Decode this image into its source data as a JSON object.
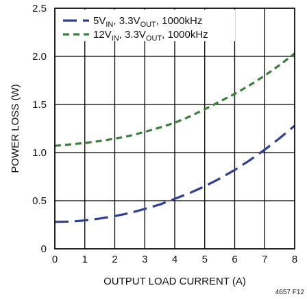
{
  "chart_data": {
    "type": "line",
    "xlabel": "OUTPUT LOAD CURRENT (A)",
    "ylabel": "POWER LOSS (W)",
    "xlim": [
      0,
      8
    ],
    "ylim": [
      0,
      2.5
    ],
    "x_ticks": [
      "0",
      "1",
      "2",
      "3",
      "4",
      "5",
      "6",
      "7",
      "8"
    ],
    "y_ticks": [
      "0",
      "0.5",
      "1.0",
      "1.5",
      "2.0",
      "2.5"
    ],
    "grid": true,
    "legend_position": "top-left",
    "series": [
      {
        "name_parts": [
          "5V",
          "IN",
          ", 3.3V",
          "OUT",
          ", 1000kHz"
        ],
        "color": "#2f3f93",
        "dash": "long-dash",
        "x": [
          0,
          0.5,
          1,
          1.5,
          2,
          2.5,
          3,
          3.5,
          4,
          4.5,
          5,
          5.5,
          6,
          6.5,
          7,
          7.5,
          8
        ],
        "y": [
          0.28,
          0.283,
          0.295,
          0.315,
          0.34,
          0.372,
          0.415,
          0.46,
          0.52,
          0.58,
          0.65,
          0.73,
          0.82,
          0.92,
          1.03,
          1.15,
          1.28
        ]
      },
      {
        "name_parts": [
          "12V",
          "IN",
          ", 3.3V",
          "OUT",
          ", 1000kHz"
        ],
        "color": "#3b7f3b",
        "dash": "short-dash",
        "x": [
          0,
          0.5,
          1,
          1.5,
          2,
          2.5,
          3,
          3.5,
          4,
          4.5,
          5,
          5.5,
          6,
          6.5,
          7,
          7.5,
          8
        ],
        "y": [
          1.07,
          1.085,
          1.1,
          1.12,
          1.145,
          1.175,
          1.215,
          1.26,
          1.31,
          1.375,
          1.45,
          1.53,
          1.61,
          1.7,
          1.8,
          1.91,
          2.03
        ]
      }
    ]
  },
  "figure_ref": "4657 F12"
}
